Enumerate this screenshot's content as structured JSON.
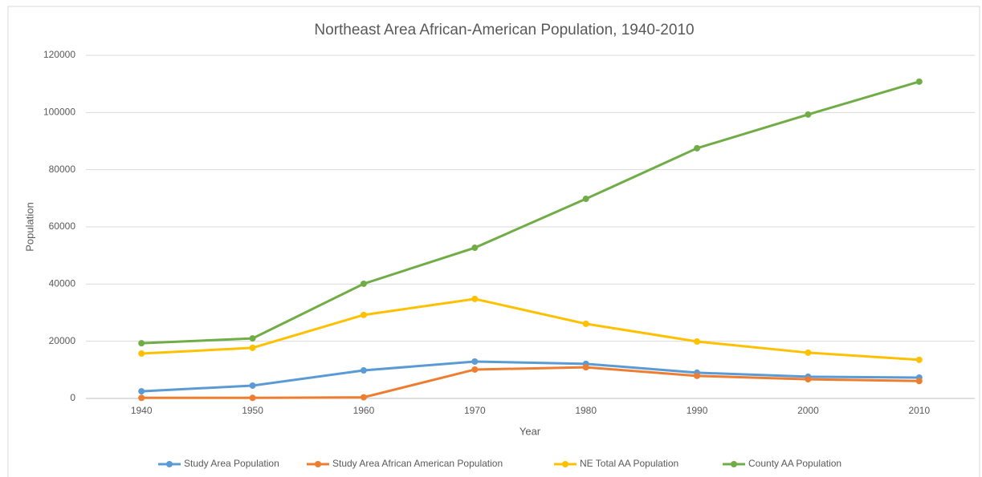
{
  "chart_data": {
    "type": "line",
    "title": "Northeast Area African-American Population, 1940-2010",
    "x_label": "Year",
    "y_label": "Population",
    "categories": [
      "1940",
      "1950",
      "1960",
      "1970",
      "1980",
      "1990",
      "2000",
      "2010"
    ],
    "series": [
      {
        "name": "Study Area Population",
        "color": "#5b9bd5",
        "values": [
          2500,
          4500,
          9800,
          12900,
          12100,
          9000,
          7600,
          7300
        ]
      },
      {
        "name": "Study Area African American Population",
        "color": "#ed7d31",
        "values": [
          200,
          200,
          400,
          10100,
          10900,
          7900,
          6700,
          6100
        ]
      },
      {
        "name": "NE Total AA Population",
        "color": "#ffc000",
        "values": [
          15700,
          17700,
          29200,
          34800,
          26100,
          19900,
          16000,
          13500
        ]
      },
      {
        "name": "County AA Population",
        "color": "#70ad47",
        "values": [
          19300,
          21000,
          40100,
          52700,
          69800,
          87500,
          99300,
          110800
        ]
      }
    ],
    "ylim": [
      0,
      120000
    ],
    "yticks": [
      0,
      20000,
      40000,
      60000,
      80000,
      100000,
      120000
    ],
    "grid": true,
    "legend": "bottom"
  }
}
